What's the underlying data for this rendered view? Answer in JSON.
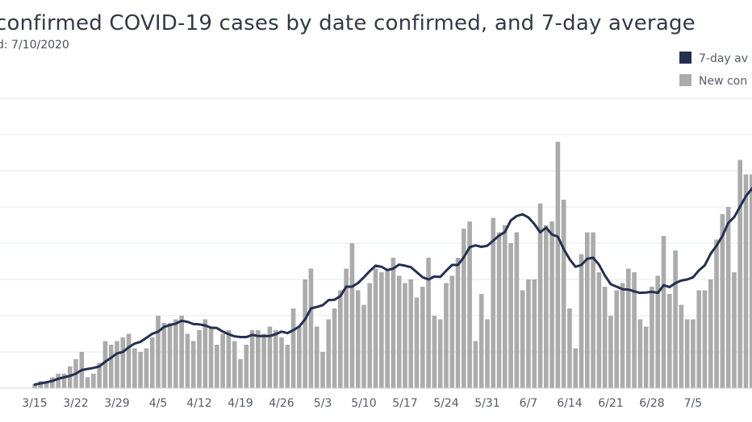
{
  "header": {
    "title": "confirmed COVID-19 cases by date confirmed, and 7-day average",
    "subtitle": "d: 7/10/2020"
  },
  "chart_data": {
    "type": "bar",
    "x_start": "3/15",
    "xlabel": "",
    "ylabel": "",
    "ylim": [
      0,
      80
    ],
    "grid": true,
    "legend_position": "top-right",
    "x_ticks": [
      "3/15",
      "3/22",
      "3/29",
      "4/5",
      "4/12",
      "4/19",
      "4/26",
      "5/3",
      "5/10",
      "5/17",
      "5/24",
      "5/31",
      "6/7",
      "6/14",
      "6/21",
      "6/28",
      "7/5"
    ],
    "series": [
      {
        "name": "New con",
        "kind": "bar",
        "color": "#ababab",
        "values": [
          1,
          2,
          2,
          3,
          4,
          4,
          6,
          8,
          10,
          3,
          4,
          7,
          13,
          12,
          13,
          14,
          15,
          11,
          10,
          11,
          14,
          20,
          18,
          18,
          19,
          20,
          15,
          13,
          16,
          19,
          17,
          12,
          15,
          16,
          13,
          8,
          12,
          16,
          16,
          15,
          17,
          16,
          14,
          12,
          22,
          17,
          30,
          33,
          17,
          10,
          19,
          22,
          27,
          33,
          40,
          27,
          23,
          29,
          33,
          32,
          33,
          36,
          31,
          29,
          30,
          25,
          28,
          36,
          20,
          19,
          29,
          31,
          36,
          44,
          46,
          13,
          26,
          19,
          47,
          43,
          45,
          40,
          43,
          27,
          30,
          30,
          51,
          45,
          46,
          68,
          52,
          22,
          11,
          37,
          43,
          43,
          32,
          28,
          20,
          27,
          29,
          33,
          32,
          19,
          17,
          28,
          31,
          42,
          26,
          38,
          23,
          19,
          19,
          27,
          27,
          30,
          41,
          48,
          50,
          32,
          63,
          59,
          59,
          61,
          68,
          60,
          53
        ],
        "plotted_count": 127
      },
      {
        "name": "7-day av",
        "kind": "line",
        "color": "#25304f",
        "values": [
          1.0,
          1.3,
          1.6,
          2.0,
          2.6,
          3.0,
          3.4,
          4.0,
          5.0,
          5.3,
          5.6,
          6.0,
          7.3,
          8.4,
          9.6,
          10.0,
          11.3,
          12.3,
          12.8,
          13.9,
          15.0,
          15.6,
          16.9,
          17.4,
          17.8,
          18.6,
          18.3,
          17.7,
          17.6,
          17.3,
          16.7,
          16.6,
          15.6,
          14.9,
          14.3,
          14.1,
          14.1,
          14.7,
          14.4,
          14.4,
          14.4,
          14.9,
          15.6,
          15.2,
          16.0,
          17.0,
          19.0,
          22.0,
          22.4,
          22.9,
          24.3,
          24.4,
          25.4,
          28.0,
          28.0,
          29.0,
          30.6,
          32.3,
          33.8,
          33.5,
          32.6,
          33.0,
          34.1,
          33.8,
          33.4,
          32.0,
          30.6,
          30.0,
          30.8,
          30.7,
          32.4,
          34.0,
          34.0,
          36.1,
          38.9,
          39.4,
          39.0,
          39.3,
          40.7,
          42.1,
          43.1,
          46.3,
          47.5,
          48.0,
          47.1,
          45.3,
          43.0,
          44.3,
          42.4,
          41.8,
          38.4,
          35.6,
          33.5,
          34.0,
          35.7,
          36.0,
          34.1,
          31.1,
          28.7,
          28.0,
          27.3,
          27.2,
          26.7,
          26.3,
          26.4,
          26.6,
          26.3,
          28.4,
          27.9,
          29.0,
          29.7,
          30.0,
          30.6,
          32.5,
          33.9,
          37.1,
          39.3,
          42.0,
          45.6,
          47.2,
          50.1,
          53.0,
          55.0,
          57.0,
          60.0,
          61.4,
          58.0
        ]
      }
    ]
  }
}
